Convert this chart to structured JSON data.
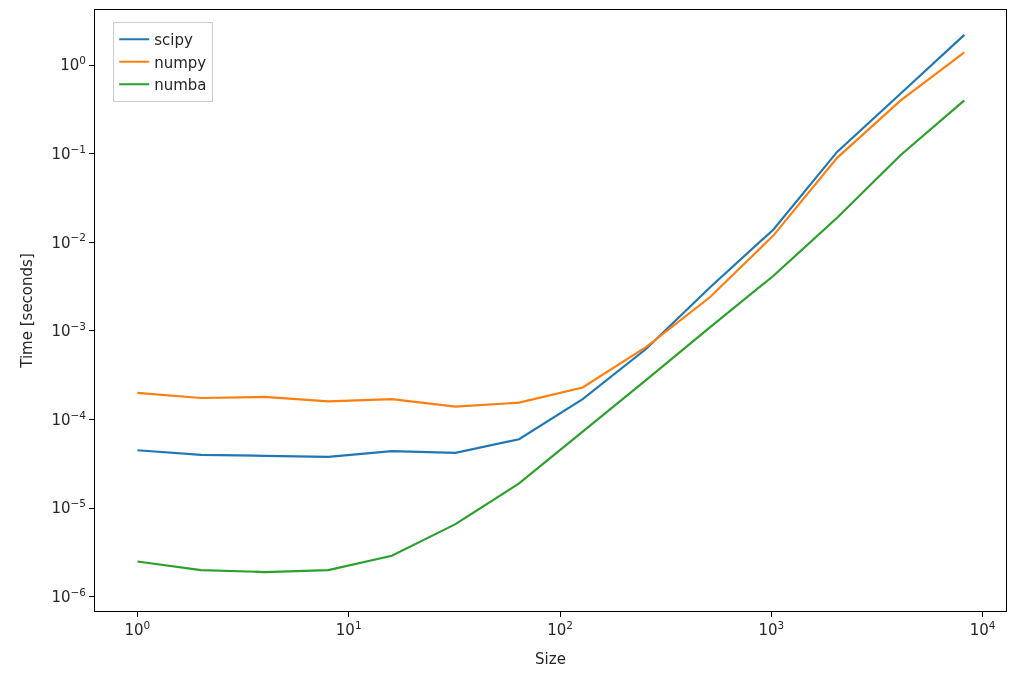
{
  "chart_data": {
    "type": "line",
    "xlabel": "Size",
    "ylabel": "Time [seconds]",
    "log": "xy",
    "legend": "top left",
    "marker": "none",
    "line_style": "solid",
    "x": [
      1,
      2,
      4,
      8,
      16,
      32,
      64,
      128,
      256,
      512,
      1024,
      2048,
      4096,
      8192
    ],
    "xlim": [
      0.63,
      12900
    ],
    "ylim": [
      6.9e-07,
      4.2
    ],
    "xticks": [
      {
        "value": 1,
        "label": "10$^{0}$"
      },
      {
        "value": 10,
        "label": "10$^{1}$"
      },
      {
        "value": 100,
        "label": "10$^{2}$"
      },
      {
        "value": 1000,
        "label": "10$^{3}$"
      },
      {
        "value": 10000,
        "label": "10$^{4}$"
      }
    ],
    "yticks": [
      {
        "value": 1e-06,
        "label": "10$^{−6}$"
      },
      {
        "value": 1e-05,
        "label": "10$^{−5}$"
      },
      {
        "value": 0.0001,
        "label": "10$^{−4}$"
      },
      {
        "value": 0.001,
        "label": "10$^{−3}$"
      },
      {
        "value": 0.01,
        "label": "10$^{−2}$"
      },
      {
        "value": 0.1,
        "label": "10$^{−1}$"
      },
      {
        "value": 1,
        "label": "10$^{0}$"
      }
    ],
    "series": [
      {
        "name": "scipy",
        "color": "#1f77b4",
        "values": [
          4.5e-05,
          4e-05,
          3.9e-05,
          3.8e-05,
          4.4e-05,
          4.2e-05,
          6e-05,
          0.00017,
          0.00063,
          0.0031,
          0.014,
          0.105,
          0.48,
          2.2
        ]
      },
      {
        "name": "numpy",
        "color": "#ff7f0e",
        "values": [
          0.0002,
          0.000175,
          0.00018,
          0.00016,
          0.00017,
          0.00014,
          0.000155,
          0.00023,
          0.00066,
          0.0024,
          0.012,
          0.09,
          0.4,
          1.4
        ]
      },
      {
        "name": "numba",
        "color": "#2ca02c",
        "values": [
          2.5e-06,
          2e-06,
          1.9e-06,
          2e-06,
          2.9e-06,
          6.6e-06,
          1.9e-05,
          7.3e-05,
          0.00028,
          0.0011,
          0.0042,
          0.019,
          0.097,
          0.4
        ]
      }
    ]
  }
}
